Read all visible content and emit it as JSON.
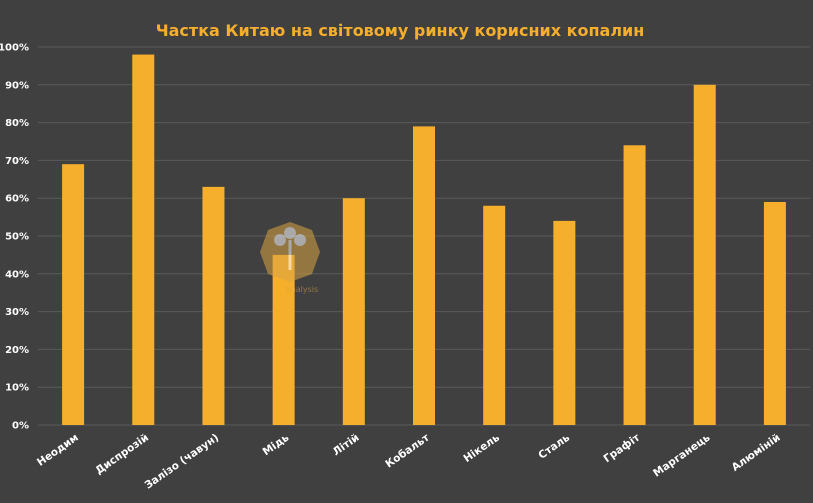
{
  "colors": {
    "background": "#404040",
    "bar": "#F6AE2D",
    "title": "#F6AE2D",
    "axis_text": "#FFFFFF",
    "grid": "#5A5A5A",
    "watermark": "#D9A441"
  },
  "watermark": {
    "text": "analysis",
    "icon": "tree-logo-icon"
  },
  "chart_data": {
    "type": "bar",
    "title": "Частка Китаю на світовому ринку корисних копалин",
    "xlabel": "",
    "ylabel": "",
    "ylim": [
      0,
      100
    ],
    "yticks": [
      "0%",
      "10%",
      "20%",
      "30%",
      "40%",
      "50%",
      "60%",
      "70%",
      "80%",
      "90%",
      "100%"
    ],
    "grid": true,
    "legend": "none",
    "categories": [
      "Неодим",
      "Диспрозій",
      "Залізо (чавун)",
      "Мідь",
      "Літій",
      "Кобальт",
      "Нікель",
      "Сталь",
      "Графіт",
      "Марганець",
      "Алюміній"
    ],
    "values": [
      69,
      98,
      63,
      45,
      60,
      79,
      58,
      54,
      74,
      90,
      59
    ]
  }
}
